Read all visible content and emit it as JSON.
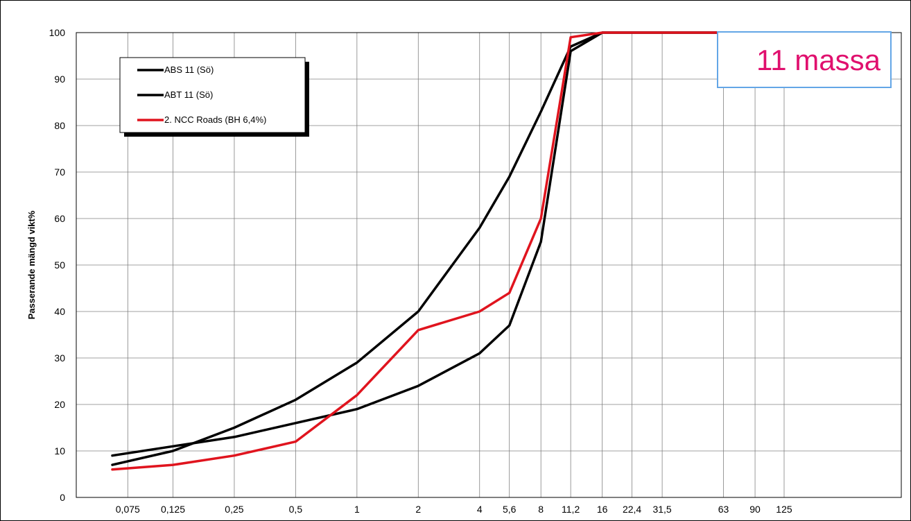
{
  "chart_data": {
    "type": "line",
    "title": "",
    "xlabel": "",
    "ylabel": "Passerande mängd  vikt%",
    "x_scale": "log",
    "ylim": [
      0,
      100
    ],
    "yticks": [
      0,
      10,
      20,
      30,
      40,
      50,
      60,
      70,
      80,
      90,
      100
    ],
    "categories": [
      "0,075",
      "0,125",
      "0,25",
      "0,5",
      "1",
      "2",
      "4",
      "5,6",
      "8",
      "11,2",
      "16",
      "22,4",
      "31,5",
      "63",
      "90",
      "125"
    ],
    "grid": true,
    "legend_position": "top-left",
    "annotation": "11 massa",
    "series": [
      {
        "name": "ABS 11 (Sö)",
        "color": "#000000",
        "x": [
          0.063,
          0.125,
          0.25,
          0.5,
          1,
          2,
          4,
          5.6,
          8,
          11.2,
          16,
          125
        ],
        "values": [
          7,
          10,
          15,
          21,
          29,
          40,
          58,
          69,
          83,
          97,
          100,
          100
        ]
      },
      {
        "name": "ABT 11 (Sö)",
        "color": "#000000",
        "x": [
          0.063,
          0.125,
          0.25,
          0.5,
          1,
          2,
          4,
          5.6,
          8,
          11.2,
          16,
          125
        ],
        "values": [
          9,
          11,
          13,
          16,
          19,
          24,
          31,
          37,
          55,
          96,
          100,
          100
        ]
      },
      {
        "name": "2. NCC Roads (BH 6,4%)",
        "color": "#e0141e",
        "x": [
          0.063,
          0.125,
          0.25,
          0.5,
          1,
          2,
          4,
          5.6,
          8,
          11.2,
          16,
          125
        ],
        "values": [
          6,
          7,
          9,
          12,
          22,
          36,
          40,
          44,
          60,
          99,
          100,
          100
        ]
      }
    ]
  }
}
